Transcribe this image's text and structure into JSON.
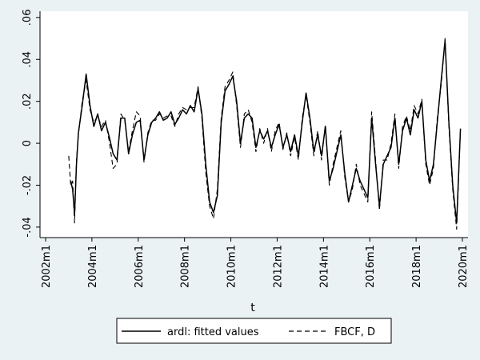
{
  "chart_data": {
    "type": "line",
    "title": "",
    "xlabel": "t",
    "ylabel": "",
    "x_ticks": [
      "2002m1",
      "2004m1",
      "2006m1",
      "2008m1",
      "2010m1",
      "2012m1",
      "2014m1",
      "2016m1",
      "2018m1",
      "2020m1"
    ],
    "y_ticks": [
      -0.04,
      -0.02,
      0,
      0.02,
      0.04,
      0.06
    ],
    "y_tick_labels": [
      "-.04",
      "-.02",
      "0",
      ".02",
      ".04",
      ".06"
    ],
    "xlim": [
      "2002m1",
      "2020m1"
    ],
    "ylim": [
      -0.045,
      0.063
    ],
    "grid": false,
    "legend_position": "bottom",
    "colors": {
      "background": "#eaf2f3",
      "plot_area": "#ffffff",
      "line": "#000000"
    },
    "series": [
      {
        "name": "ardl: fitted values",
        "style": "solid",
        "points": [
          [
            "2003m2",
            -0.018
          ],
          [
            "2003m3",
            -0.022
          ],
          [
            "2003m4",
            -0.034
          ],
          [
            "2003m5",
            -0.01
          ],
          [
            "2003m6",
            0.005
          ],
          [
            "2003m8",
            0.018
          ],
          [
            "2003m10",
            0.033
          ],
          [
            "2003m12",
            0.018
          ],
          [
            "2004m2",
            0.008
          ],
          [
            "2004m4",
            0.014
          ],
          [
            "2004m6",
            0.006
          ],
          [
            "2004m8",
            0.01
          ],
          [
            "2004m10",
            0.003
          ],
          [
            "2004m12",
            -0.005
          ],
          [
            "2005m2",
            -0.008
          ],
          [
            "2005m4",
            0.012
          ],
          [
            "2005m6",
            0.012
          ],
          [
            "2005m8",
            -0.005
          ],
          [
            "2005m10",
            0.004
          ],
          [
            "2005m12",
            0.01
          ],
          [
            "2006m2",
            0.011
          ],
          [
            "2006m4",
            -0.008
          ],
          [
            "2006m6",
            0.004
          ],
          [
            "2006m8",
            0.01
          ],
          [
            "2006m10",
            0.012
          ],
          [
            "2006m12",
            0.015
          ],
          [
            "2007m2",
            0.011
          ],
          [
            "2007m4",
            0.012
          ],
          [
            "2007m6",
            0.015
          ],
          [
            "2007m8",
            0.009
          ],
          [
            "2007m10",
            0.012
          ],
          [
            "2007m12",
            0.016
          ],
          [
            "2008m2",
            0.014
          ],
          [
            "2008m4",
            0.018
          ],
          [
            "2008m6",
            0.015
          ],
          [
            "2008m8",
            0.026
          ],
          [
            "2008m10",
            0.014
          ],
          [
            "2008m12",
            -0.01
          ],
          [
            "2009m2",
            -0.028
          ],
          [
            "2009m4",
            -0.033
          ],
          [
            "2009m6",
            -0.025
          ],
          [
            "2009m8",
            0.01
          ],
          [
            "2009m10",
            0.025
          ],
          [
            "2009m12",
            0.028
          ],
          [
            "2010m2",
            0.032
          ],
          [
            "2010m4",
            0.02
          ],
          [
            "2010m6",
            0.0
          ],
          [
            "2010m8",
            0.012
          ],
          [
            "2010m10",
            0.014
          ],
          [
            "2010m12",
            0.012
          ],
          [
            "2011m2",
            -0.002
          ],
          [
            "2011m4",
            0.006
          ],
          [
            "2011m6",
            0.002
          ],
          [
            "2011m8",
            0.006
          ],
          [
            "2011m10",
            -0.002
          ],
          [
            "2011m12",
            0.004
          ],
          [
            "2012m2",
            0.009
          ],
          [
            "2012m4",
            -0.002
          ],
          [
            "2012m6",
            0.004
          ],
          [
            "2012m8",
            -0.004
          ],
          [
            "2012m10",
            0.004
          ],
          [
            "2012m12",
            -0.006
          ],
          [
            "2013m2",
            0.01
          ],
          [
            "2013m4",
            0.024
          ],
          [
            "2013m6",
            0.012
          ],
          [
            "2013m8",
            -0.004
          ],
          [
            "2013m10",
            0.004
          ],
          [
            "2013m12",
            -0.006
          ],
          [
            "2014m2",
            0.008
          ],
          [
            "2014m4",
            -0.018
          ],
          [
            "2014m6",
            -0.012
          ],
          [
            "2014m8",
            -0.004
          ],
          [
            "2014m10",
            0.004
          ],
          [
            "2014m12",
            -0.014
          ],
          [
            "2015m2",
            -0.028
          ],
          [
            "2015m4",
            -0.02
          ],
          [
            "2015m6",
            -0.012
          ],
          [
            "2015m8",
            -0.018
          ],
          [
            "2015m10",
            -0.022
          ],
          [
            "2015m12",
            -0.026
          ],
          [
            "2016m2",
            0.012
          ],
          [
            "2016m4",
            -0.01
          ],
          [
            "2016m6",
            -0.03
          ],
          [
            "2016m8",
            -0.01
          ],
          [
            "2016m10",
            -0.006
          ],
          [
            "2016m12",
            -0.002
          ],
          [
            "2017m2",
            0.012
          ],
          [
            "2017m4",
            -0.01
          ],
          [
            "2017m6",
            0.006
          ],
          [
            "2017m8",
            0.012
          ],
          [
            "2017m10",
            0.004
          ],
          [
            "2017m12",
            0.016
          ],
          [
            "2018m2",
            0.012
          ],
          [
            "2018m4",
            0.02
          ],
          [
            "2018m6",
            -0.008
          ],
          [
            "2018m8",
            -0.018
          ],
          [
            "2018m10",
            -0.01
          ],
          [
            "2018m12",
            0.01
          ],
          [
            "2019m2",
            0.03
          ],
          [
            "2019m4",
            0.049
          ],
          [
            "2019m6",
            0.01
          ],
          [
            "2019m8",
            -0.02
          ],
          [
            "2019m10",
            -0.038
          ],
          [
            "2019m12",
            0.007
          ]
        ]
      },
      {
        "name": "FBCF, D",
        "style": "dashed",
        "points": [
          [
            "2003m1",
            -0.006
          ],
          [
            "2003m2",
            -0.02
          ],
          [
            "2003m3",
            -0.018
          ],
          [
            "2003m4",
            -0.038
          ],
          [
            "2003m5",
            -0.008
          ],
          [
            "2003m6",
            0.004
          ],
          [
            "2003m8",
            0.02
          ],
          [
            "2003m10",
            0.03
          ],
          [
            "2003m12",
            0.016
          ],
          [
            "2004m2",
            0.01
          ],
          [
            "2004m4",
            0.013
          ],
          [
            "2004m6",
            0.008
          ],
          [
            "2004m8",
            0.011
          ],
          [
            "2004m10",
            0.001
          ],
          [
            "2004m12",
            -0.012
          ],
          [
            "2005m2",
            -0.01
          ],
          [
            "2005m4",
            0.014
          ],
          [
            "2005m6",
            0.011
          ],
          [
            "2005m8",
            -0.004
          ],
          [
            "2005m10",
            0.006
          ],
          [
            "2005m12",
            0.015
          ],
          [
            "2006m2",
            0.013
          ],
          [
            "2006m4",
            -0.009
          ],
          [
            "2006m6",
            0.005
          ],
          [
            "2006m8",
            0.011
          ],
          [
            "2006m10",
            0.011
          ],
          [
            "2006m12",
            0.014
          ],
          [
            "2007m2",
            0.012
          ],
          [
            "2007m4",
            0.013
          ],
          [
            "2007m6",
            0.013
          ],
          [
            "2007m8",
            0.008
          ],
          [
            "2007m10",
            0.014
          ],
          [
            "2007m12",
            0.017
          ],
          [
            "2008m2",
            0.016
          ],
          [
            "2008m4",
            0.017
          ],
          [
            "2008m6",
            0.017
          ],
          [
            "2008m8",
            0.027
          ],
          [
            "2008m10",
            0.012
          ],
          [
            "2008m12",
            -0.014
          ],
          [
            "2009m2",
            -0.03
          ],
          [
            "2009m4",
            -0.036
          ],
          [
            "2009m6",
            -0.022
          ],
          [
            "2009m8",
            0.012
          ],
          [
            "2009m10",
            0.027
          ],
          [
            "2009m12",
            0.03
          ],
          [
            "2010m2",
            0.034
          ],
          [
            "2010m4",
            0.018
          ],
          [
            "2010m6",
            -0.002
          ],
          [
            "2010m8",
            0.014
          ],
          [
            "2010m10",
            0.016
          ],
          [
            "2010m12",
            0.01
          ],
          [
            "2011m2",
            -0.004
          ],
          [
            "2011m4",
            0.007
          ],
          [
            "2011m6",
            0.0
          ],
          [
            "2011m8",
            0.007
          ],
          [
            "2011m10",
            -0.004
          ],
          [
            "2011m12",
            0.006
          ],
          [
            "2012m2",
            0.01
          ],
          [
            "2012m4",
            -0.003
          ],
          [
            "2012m6",
            0.005
          ],
          [
            "2012m8",
            -0.006
          ],
          [
            "2012m10",
            0.003
          ],
          [
            "2012m12",
            -0.008
          ],
          [
            "2013m2",
            0.012
          ],
          [
            "2013m4",
            0.023
          ],
          [
            "2013m6",
            0.01
          ],
          [
            "2013m8",
            -0.006
          ],
          [
            "2013m10",
            0.006
          ],
          [
            "2013m12",
            -0.008
          ],
          [
            "2014m2",
            0.009
          ],
          [
            "2014m4",
            -0.02
          ],
          [
            "2014m6",
            -0.01
          ],
          [
            "2014m8",
            -0.002
          ],
          [
            "2014m10",
            0.006
          ],
          [
            "2014m12",
            -0.016
          ],
          [
            "2015m2",
            -0.028
          ],
          [
            "2015m4",
            -0.022
          ],
          [
            "2015m6",
            -0.01
          ],
          [
            "2015m8",
            -0.02
          ],
          [
            "2015m10",
            -0.024
          ],
          [
            "2015m12",
            -0.028
          ],
          [
            "2016m2",
            0.015
          ],
          [
            "2016m4",
            -0.008
          ],
          [
            "2016m6",
            -0.032
          ],
          [
            "2016m8",
            -0.008
          ],
          [
            "2016m10",
            -0.008
          ],
          [
            "2016m12",
            0.0
          ],
          [
            "2017m2",
            0.014
          ],
          [
            "2017m4",
            -0.012
          ],
          [
            "2017m6",
            0.008
          ],
          [
            "2017m8",
            0.013
          ],
          [
            "2017m10",
            0.006
          ],
          [
            "2017m12",
            0.018
          ],
          [
            "2018m2",
            0.014
          ],
          [
            "2018m4",
            0.021
          ],
          [
            "2018m6",
            -0.01
          ],
          [
            "2018m8",
            -0.02
          ],
          [
            "2018m10",
            -0.012
          ],
          [
            "2018m12",
            0.012
          ],
          [
            "2019m2",
            0.028
          ],
          [
            "2019m4",
            0.05
          ],
          [
            "2019m6",
            0.008
          ],
          [
            "2019m8",
            -0.022
          ],
          [
            "2019m10",
            -0.041
          ],
          [
            "2019m12",
            0.007
          ]
        ]
      }
    ]
  }
}
